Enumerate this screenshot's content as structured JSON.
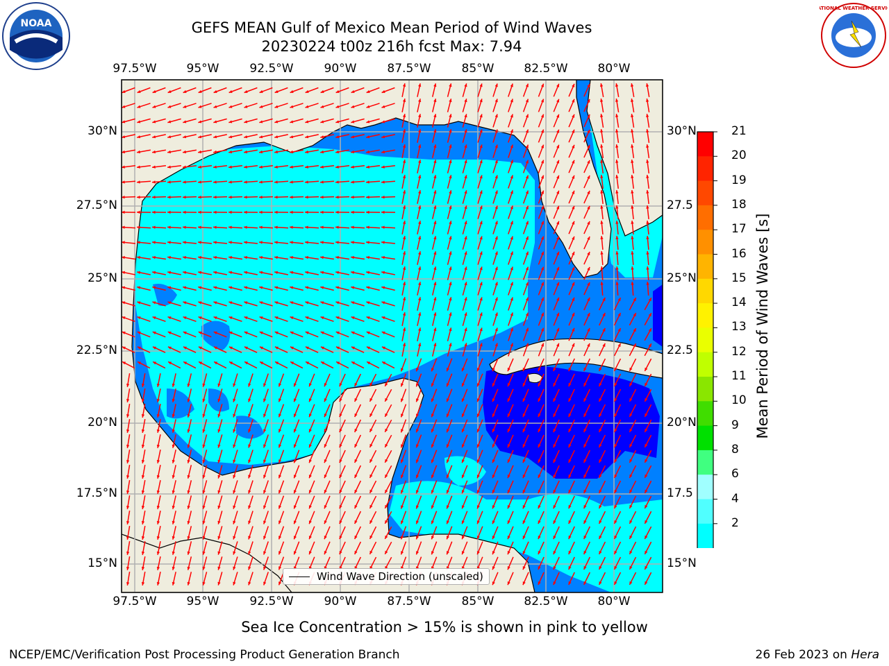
{
  "title": {
    "line1": "GEFS MEAN Gulf of Mexico Mean Period of Wind Waves",
    "line2": "20230224 t00z 216h fcst   Max: 7.94"
  },
  "axes": {
    "lon_labels": [
      "97.5°W",
      "95°W",
      "92.5°W",
      "90°W",
      "87.5°W",
      "85°W",
      "82.5°W",
      "80°W"
    ],
    "lat_labels_left": [
      "30°N",
      "27.5°N",
      "25°N",
      "22.5°N",
      "20°N",
      "17.5°N",
      "15°N"
    ],
    "lat_labels_right": [
      "30°N",
      "27.5",
      "25°N",
      "22.5",
      "20°N",
      "17.5",
      "15°N"
    ]
  },
  "legend": {
    "label": "Wind Wave Direction (unscaled)"
  },
  "colorbar": {
    "label": "Mean Period of Wind Waves [s]",
    "ticks": [
      "21",
      "20",
      "19",
      "18",
      "17",
      "16",
      "15",
      "14",
      "13",
      "12",
      "11",
      "10",
      "9",
      "8",
      "6",
      "4",
      "2"
    ],
    "colors": [
      "#ff0000",
      "#ff2400",
      "#ff4800",
      "#ff6e00",
      "#ff9000",
      "#ffb400",
      "#ffd800",
      "#fff200",
      "#eaff00",
      "#c0ff00",
      "#8ae600",
      "#40dd00",
      "#00e000",
      "#40ff80",
      "#a0ffff",
      "#50ffff",
      "#00ffff",
      "#0080ff"
    ],
    "extend_color": "#0000ff"
  },
  "colors": {
    "land": "#efedde",
    "ocean_light": "#00ffff",
    "ocean_mid": "#0080ff",
    "ocean_dark": "#0000ff",
    "arrow": "#ff0000",
    "grid": "#b0b0b0"
  },
  "subtitle": "Sea Ice Concentration > 15% is shown in pink to yellow",
  "footer": {
    "left": "NCEP/EMC/Verification Post Processing Product Generation Branch",
    "right_date": "26 Feb 2023 on ",
    "right_host": "Hera"
  },
  "logos": {
    "noaa": "NOAA",
    "nws": "NATIONAL WEATHER SERVICE"
  }
}
